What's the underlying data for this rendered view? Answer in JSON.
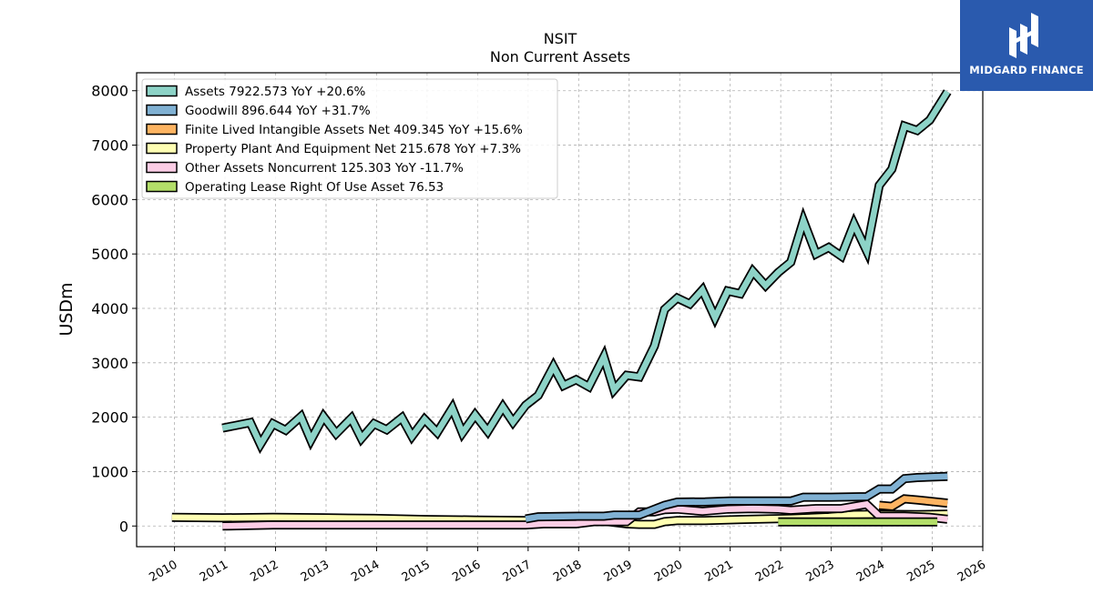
{
  "chart_data": {
    "type": "line",
    "title": "NSIT",
    "subtitle": "Non Current  Assets",
    "ylabel": "USDm",
    "xlabel": "",
    "xlim": [
      2009.25,
      2026.0
    ],
    "ylim": [
      -380,
      8330
    ],
    "x_ticks": [
      "2010",
      "2011",
      "2012",
      "2013",
      "2014",
      "2015",
      "2016",
      "2017",
      "2018",
      "2019",
      "2020",
      "2021",
      "2022",
      "2023",
      "2024",
      "2025",
      "2026"
    ],
    "y_ticks": [
      "0",
      "1000",
      "2000",
      "3000",
      "4000",
      "5000",
      "6000",
      "7000",
      "8000"
    ],
    "grid": true,
    "legend_position": "top-left",
    "series": [
      {
        "name": "Assets",
        "legend_label": "Assets  7922.573 YoY +20.6%",
        "color": "#8dd3c7",
        "points": [
          [
            2010.95,
            1800
          ],
          [
            2011.5,
            1900
          ],
          [
            2011.7,
            1500
          ],
          [
            2011.95,
            1880
          ],
          [
            2012.2,
            1760
          ],
          [
            2012.5,
            2010
          ],
          [
            2012.7,
            1580
          ],
          [
            2012.95,
            2010
          ],
          [
            2013.2,
            1700
          ],
          [
            2013.5,
            1980
          ],
          [
            2013.7,
            1610
          ],
          [
            2013.95,
            1880
          ],
          [
            2014.2,
            1770
          ],
          [
            2014.5,
            1990
          ],
          [
            2014.7,
            1650
          ],
          [
            2014.95,
            1960
          ],
          [
            2015.2,
            1720
          ],
          [
            2015.5,
            2170
          ],
          [
            2015.7,
            1710
          ],
          [
            2015.95,
            2040
          ],
          [
            2016.2,
            1740
          ],
          [
            2016.5,
            2190
          ],
          [
            2016.7,
            1910
          ],
          [
            2016.95,
            2220
          ],
          [
            2017.2,
            2400
          ],
          [
            2017.5,
            2930
          ],
          [
            2017.7,
            2580
          ],
          [
            2017.95,
            2690
          ],
          [
            2018.2,
            2560
          ],
          [
            2018.5,
            3110
          ],
          [
            2018.7,
            2500
          ],
          [
            2018.95,
            2770
          ],
          [
            2019.2,
            2740
          ],
          [
            2019.5,
            3310
          ],
          [
            2019.7,
            3980
          ],
          [
            2019.95,
            4190
          ],
          [
            2020.2,
            4080
          ],
          [
            2020.45,
            4340
          ],
          [
            2020.7,
            3830
          ],
          [
            2020.95,
            4320
          ],
          [
            2021.2,
            4270
          ],
          [
            2021.45,
            4680
          ],
          [
            2021.7,
            4420
          ],
          [
            2021.95,
            4660
          ],
          [
            2022.2,
            4850
          ],
          [
            2022.45,
            5610
          ],
          [
            2022.7,
            5000
          ],
          [
            2022.95,
            5120
          ],
          [
            2023.2,
            4960
          ],
          [
            2023.45,
            5550
          ],
          [
            2023.7,
            5060
          ],
          [
            2023.95,
            6260
          ],
          [
            2024.2,
            6560
          ],
          [
            2024.45,
            7350
          ],
          [
            2024.7,
            7270
          ],
          [
            2024.95,
            7460
          ],
          [
            2025.3,
            7980
          ]
        ]
      },
      {
        "name": "Goodwill",
        "legend_label": "Goodwill  896.644 YoY +31.7%",
        "color": "#80b1d3",
        "points": [
          [
            2016.95,
            130
          ],
          [
            2017.2,
            170
          ],
          [
            2018.0,
            180
          ],
          [
            2018.5,
            180
          ],
          [
            2018.7,
            200
          ],
          [
            2019.2,
            200
          ],
          [
            2019.7,
            380
          ],
          [
            2019.95,
            440
          ],
          [
            2020.5,
            445
          ],
          [
            2021.0,
            460
          ],
          [
            2021.5,
            460
          ],
          [
            2022.2,
            460
          ],
          [
            2022.45,
            530
          ],
          [
            2023.0,
            530
          ],
          [
            2023.7,
            540
          ],
          [
            2023.95,
            680
          ],
          [
            2024.2,
            680
          ],
          [
            2024.45,
            870
          ],
          [
            2024.7,
            890
          ],
          [
            2025.3,
            910
          ]
        ]
      },
      {
        "name": "Finite Lived Intangible Assets Net",
        "legend_label": "Finite Lived Intangible Assets Net  409.345 YoY +15.6%",
        "color": "#fdb462",
        "points": [
          [
            2023.95,
            380
          ],
          [
            2024.2,
            360
          ],
          [
            2024.45,
            500
          ],
          [
            2024.7,
            480
          ],
          [
            2025.3,
            420
          ]
        ]
      },
      {
        "name": "Property Plant And Equipment Net",
        "legend_label": "Property Plant And Equipment Net  215.678 YoY +7.3%",
        "color": "#ffffb3",
        "points": [
          [
            2009.95,
            160
          ],
          [
            2010.95,
            150
          ],
          [
            2011.95,
            160
          ],
          [
            2012.95,
            150
          ],
          [
            2013.95,
            140
          ],
          [
            2014.95,
            120
          ],
          [
            2015.95,
            110
          ],
          [
            2016.95,
            100
          ],
          [
            2017.5,
            95
          ],
          [
            2018.5,
            90
          ],
          [
            2018.95,
            40
          ],
          [
            2019.2,
            30
          ],
          [
            2019.5,
            30
          ],
          [
            2019.7,
            80
          ],
          [
            2019.95,
            100
          ],
          [
            2020.5,
            100
          ],
          [
            2021.2,
            120
          ],
          [
            2021.7,
            130
          ],
          [
            2022.2,
            140
          ],
          [
            2022.95,
            170
          ],
          [
            2023.45,
            210
          ],
          [
            2023.95,
            215
          ],
          [
            2024.7,
            210
          ],
          [
            2025.3,
            216
          ]
        ]
      },
      {
        "name": "Other Assets Noncurrent",
        "legend_label": "Other Assets Noncurrent  125.303 YoY -11.7%",
        "color": "#fccde5",
        "points": [
          [
            2010.95,
            0
          ],
          [
            2011.95,
            20
          ],
          [
            2012.95,
            20
          ],
          [
            2013.95,
            20
          ],
          [
            2014.95,
            20
          ],
          [
            2015.95,
            20
          ],
          [
            2016.95,
            20
          ],
          [
            2017.3,
            40
          ],
          [
            2017.95,
            40
          ],
          [
            2018.3,
            80
          ],
          [
            2018.95,
            80
          ],
          [
            2019.2,
            260
          ],
          [
            2019.5,
            260
          ],
          [
            2019.7,
            300
          ],
          [
            2019.95,
            310
          ],
          [
            2020.45,
            270
          ],
          [
            2020.95,
            310
          ],
          [
            2021.45,
            320
          ],
          [
            2021.95,
            310
          ],
          [
            2022.2,
            290
          ],
          [
            2022.7,
            320
          ],
          [
            2023.2,
            320
          ],
          [
            2023.7,
            400
          ],
          [
            2023.95,
            180
          ],
          [
            2024.45,
            180
          ],
          [
            2024.95,
            160
          ],
          [
            2025.3,
            125
          ]
        ]
      },
      {
        "name": "Operating Lease Right Of Use Asset",
        "legend_label": "Operating Lease Right Of Use Asset  76.53",
        "color": "#b3de69",
        "points": [
          [
            2021.95,
            77
          ],
          [
            2025.1,
            77
          ]
        ]
      }
    ]
  },
  "logo": {
    "brand": "MIDGARD FINANCE"
  }
}
